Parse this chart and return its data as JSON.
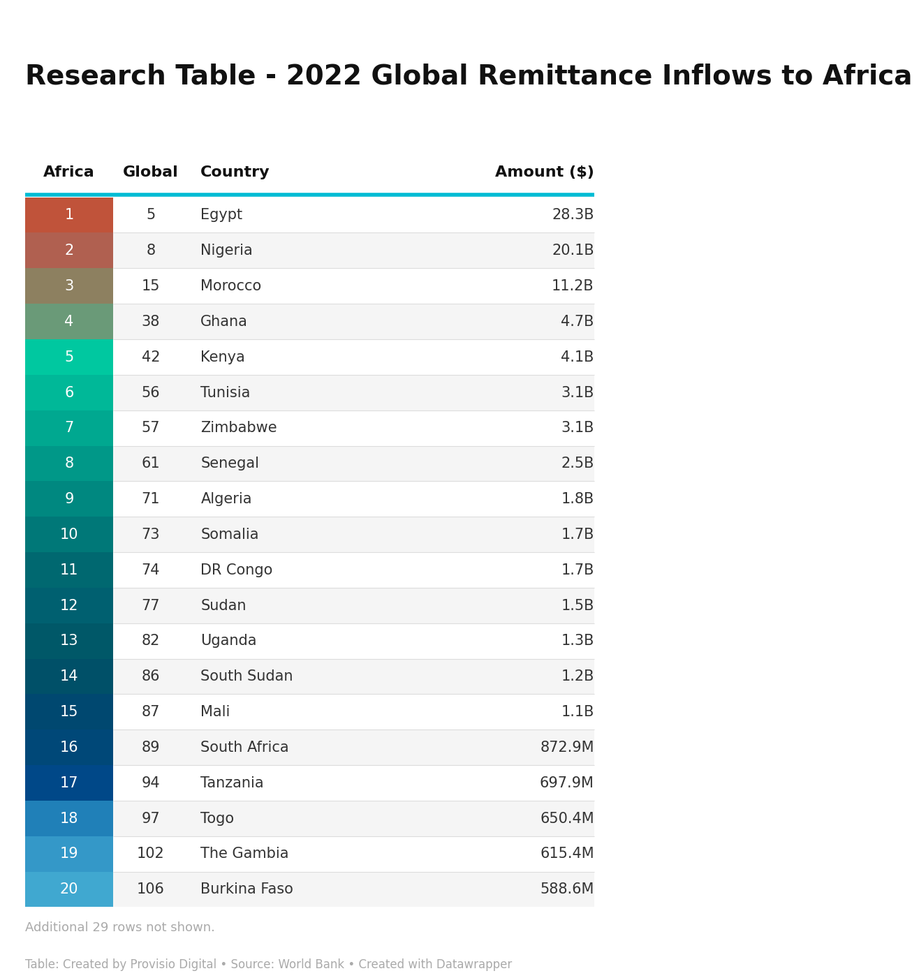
{
  "title": "Research Table - 2022 Global Remittance Inflows to Africa",
  "col_headers": [
    "Africa",
    "Global",
    "Country",
    "Amount ($)"
  ],
  "rows": [
    [
      1,
      5,
      "Egypt",
      "28.3B"
    ],
    [
      2,
      8,
      "Nigeria",
      "20.1B"
    ],
    [
      3,
      15,
      "Morocco",
      "11.2B"
    ],
    [
      4,
      38,
      "Ghana",
      "4.7B"
    ],
    [
      5,
      42,
      "Kenya",
      "4.1B"
    ],
    [
      6,
      56,
      "Tunisia",
      "3.1B"
    ],
    [
      7,
      57,
      "Zimbabwe",
      "3.1B"
    ],
    [
      8,
      61,
      "Senegal",
      "2.5B"
    ],
    [
      9,
      71,
      "Algeria",
      "1.8B"
    ],
    [
      10,
      73,
      "Somalia",
      "1.7B"
    ],
    [
      11,
      74,
      "DR Congo",
      "1.7B"
    ],
    [
      12,
      77,
      "Sudan",
      "1.5B"
    ],
    [
      13,
      82,
      "Uganda",
      "1.3B"
    ],
    [
      14,
      86,
      "South Sudan",
      "1.2B"
    ],
    [
      15,
      87,
      "Mali",
      "1.1B"
    ],
    [
      16,
      89,
      "South Africa",
      "872.9M"
    ],
    [
      17,
      94,
      "Tanzania",
      "697.9M"
    ],
    [
      18,
      97,
      "Togo",
      "650.4M"
    ],
    [
      19,
      102,
      "The Gambia",
      "615.4M"
    ],
    [
      20,
      106,
      "Burkina Faso",
      "588.6M"
    ]
  ],
  "africa_col_colors": [
    "#c0533a",
    "#b06050",
    "#8d8060",
    "#6a9a78",
    "#00c8a0",
    "#00b898",
    "#00a890",
    "#009888",
    "#008880",
    "#007878",
    "#006870",
    "#006070",
    "#005868",
    "#005068",
    "#004870",
    "#004878",
    "#004888",
    "#2080b8",
    "#3498c8",
    "#40a8d0"
  ],
  "separator_color": "#00bcd4",
  "footer_note": "Additional 29 rows not shown.",
  "source_note": "Table: Created by Provisio Digital • Source: World Bank • Created with Datawrapper",
  "background_color": "#ffffff",
  "text_color_africa": "#ffffff",
  "text_color_body": "#333333",
  "text_color_note": "#aaaaaa",
  "title_fontsize": 28,
  "header_fontsize": 16,
  "body_fontsize": 15,
  "note_fontsize": 13
}
